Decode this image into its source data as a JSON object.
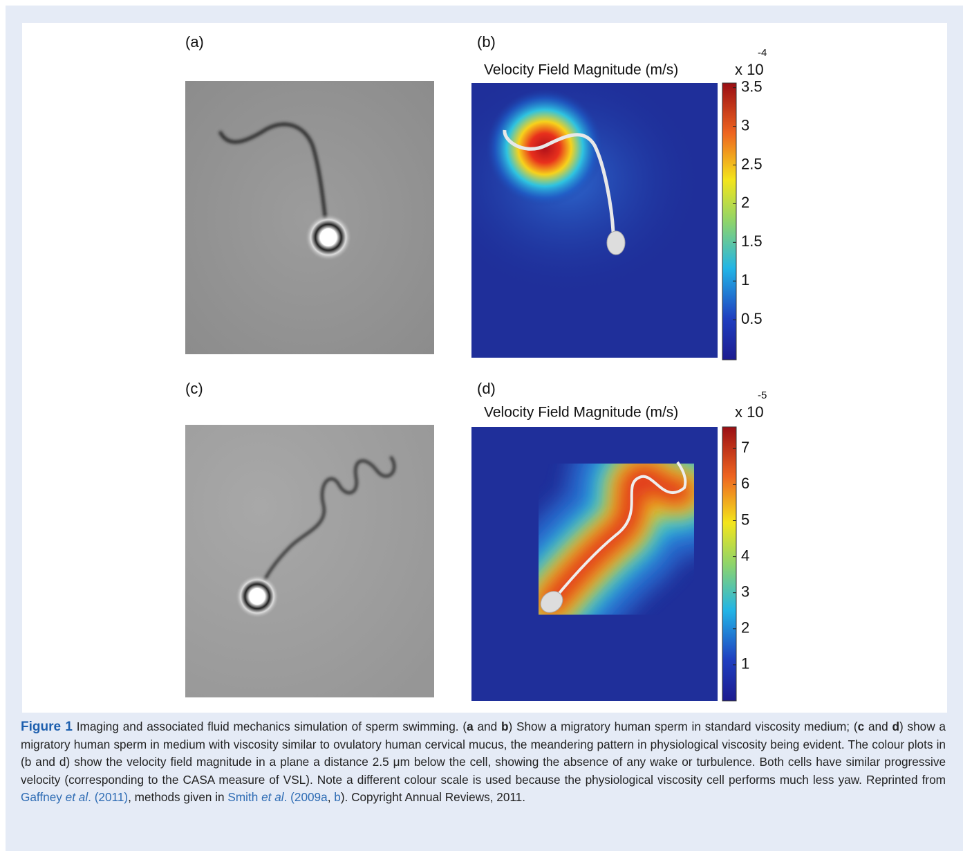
{
  "panels": [
    {
      "label": "(a)"
    },
    {
      "label": "(b)",
      "title": "Velocity Field Magnitude (m/s)",
      "multiplier": "x 10",
      "exponent": "-4",
      "colorbar": {
        "lim": [
          0,
          3.56
        ],
        "ticks": [
          0.5,
          1,
          1.5,
          2,
          2.5,
          3,
          3.5
        ]
      }
    },
    {
      "label": "(c)"
    },
    {
      "label": "(d)",
      "title": "Velocity Field Magnitude (m/s)",
      "multiplier": "x 10",
      "exponent": "-5",
      "colorbar": {
        "lim": [
          0,
          7.6
        ],
        "ticks": [
          1,
          2,
          3,
          4,
          5,
          6,
          7
        ]
      }
    }
  ],
  "caption": [
    {
      "text": "Figure 1",
      "bold": true,
      "accent": true
    },
    {
      "text": " Imaging and associated fluid mechanics simulation of sperm swimming. ("
    },
    {
      "text": "a",
      "bold": true
    },
    {
      "text": " and "
    },
    {
      "text": "b",
      "bold": true
    },
    {
      "text": ") Show a migratory human sperm in standard viscosity medium; ("
    },
    {
      "text": "c",
      "bold": true
    },
    {
      "text": " and "
    },
    {
      "text": "d",
      "bold": true
    },
    {
      "text": ") show a migratory human sperm in medium with viscosity similar to ovulatory human cervical mucus, the meandering pattern in physiological viscosity being evident. The colour plots in (b and d) show the velocity field magnitude in a plane a distance 2.5 μm below the cell, showing the absence of any wake or turbulence. Both cells have similar progressive velocity (corresponding to the CASA measure of VSL). Note a different colour scale is used because the physiological viscosity cell performs much less yaw. Reprinted from "
    },
    {
      "text": "Gaffney ",
      "link": true
    },
    {
      "text": "et al",
      "link": true,
      "italic": true
    },
    {
      "text": ". (2011)",
      "link": true
    },
    {
      "text": ", methods given in "
    },
    {
      "text": "Smith ",
      "link": true
    },
    {
      "text": "et al",
      "link": true,
      "italic": true
    },
    {
      "text": ". (2009a",
      "link": true
    },
    {
      "text": ", "
    },
    {
      "text": "b",
      "link": true
    },
    {
      "text": "). Copyright Annual Reviews, 2011."
    }
  ]
}
